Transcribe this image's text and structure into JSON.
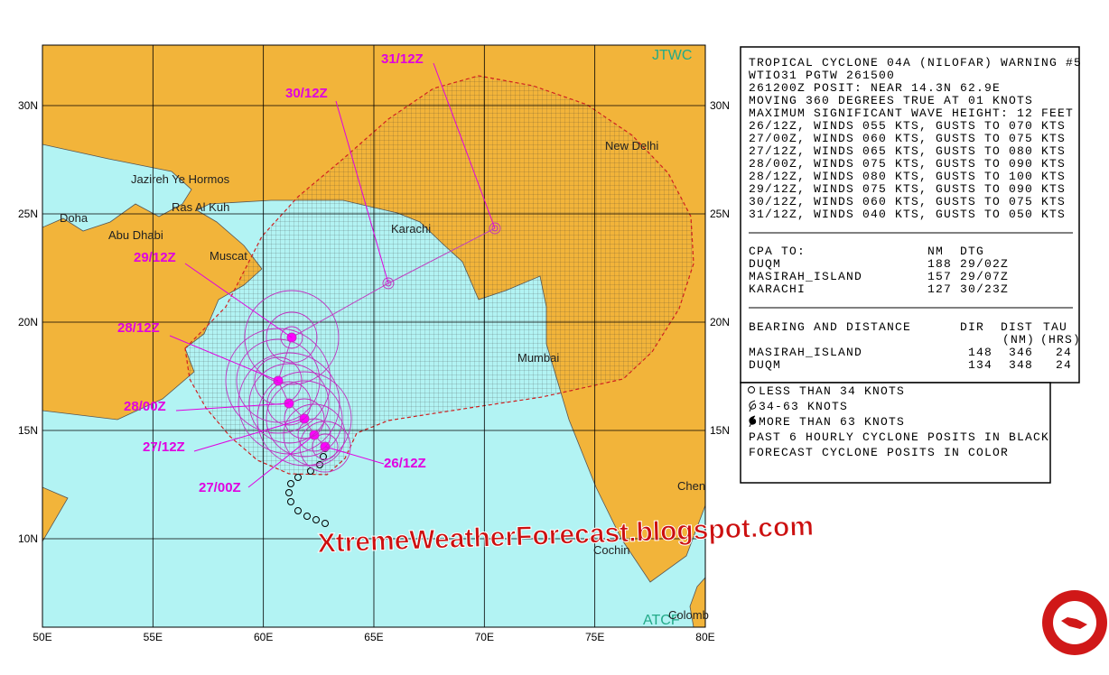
{
  "map": {
    "credit_top": "JTWC",
    "credit_bottom": "ATCF",
    "lat_labels_left": [
      "30N",
      "25N",
      "20N",
      "15N",
      "10N"
    ],
    "lat_labels_right": [
      "30N",
      "25N",
      "20N",
      "15N"
    ],
    "lon_labels": [
      "50E",
      "55E",
      "60E",
      "65E",
      "70E",
      "75E",
      "80E"
    ],
    "places": [
      "Jazireh Ye Hormos",
      "Ras Al Kuh",
      "Doha",
      "Abu Dhabi",
      "Muscat",
      "Karachi",
      "New Delhi",
      "Mumbai",
      "Cochin",
      "Chen",
      "Colomb"
    ],
    "forecast_times": [
      "31/12Z",
      "30/12Z",
      "29/12Z",
      "28/12Z",
      "28/00Z",
      "27/12Z",
      "27/00Z",
      "26/12Z"
    ],
    "watermark": "XtremeWeatherForecast.blogspot.com"
  },
  "warning": {
    "lines": [
      "TROPICAL CYCLONE 04A (NILOFAR) WARNING #5",
      "WTIO31 PGTW 261500",
      "261200Z POSIT: NEAR 14.3N 62.9E",
      "MOVING 360 DEGREES TRUE AT 01 KNOTS",
      "MAXIMUM SIGNIFICANT WAVE HEIGHT: 12 FEET",
      "26/12Z, WINDS 055 KTS, GUSTS TO 070 KTS",
      "27/00Z, WINDS 060 KTS, GUSTS TO 075 KTS",
      "27/12Z, WINDS 065 KTS, GUSTS TO 080 KTS",
      "28/00Z, WINDS 075 KTS, GUSTS TO 090 KTS",
      "28/12Z, WINDS 080 KTS, GUSTS TO 100 KTS",
      "29/12Z, WINDS 075 KTS, GUSTS TO 090 KTS",
      "30/12Z, WINDS 060 KTS, GUSTS TO 075 KTS",
      "31/12Z, WINDS 040 KTS, GUSTS TO 050 KTS"
    ],
    "cpa": {
      "header": [
        "CPA TO:",
        "NM",
        "DTG"
      ],
      "rows": [
        [
          "DUQM",
          "188",
          "29/02Z"
        ],
        [
          "MASIRAH_ISLAND",
          "157",
          "29/07Z"
        ],
        [
          "KARACHI",
          "127",
          "30/23Z"
        ]
      ]
    },
    "bearing": {
      "header": [
        "BEARING AND DISTANCE",
        "DIR",
        "DIST",
        "TAU"
      ],
      "subheader": [
        "(NM)",
        "(HRS)"
      ],
      "rows": [
        [
          "MASIRAH_ISLAND",
          "148",
          "346",
          "24"
        ],
        [
          "DUQM",
          "134",
          "348",
          "24"
        ]
      ]
    }
  },
  "legend": {
    "items": [
      "LESS THAN 34 KNOTS",
      "34-63 KNOTS",
      "MORE THAN 63 KNOTS",
      "PAST 6 HOURLY CYCLONE POSITS IN BLACK",
      "FORECAST CYCLONE POSITS IN COLOR"
    ]
  }
}
